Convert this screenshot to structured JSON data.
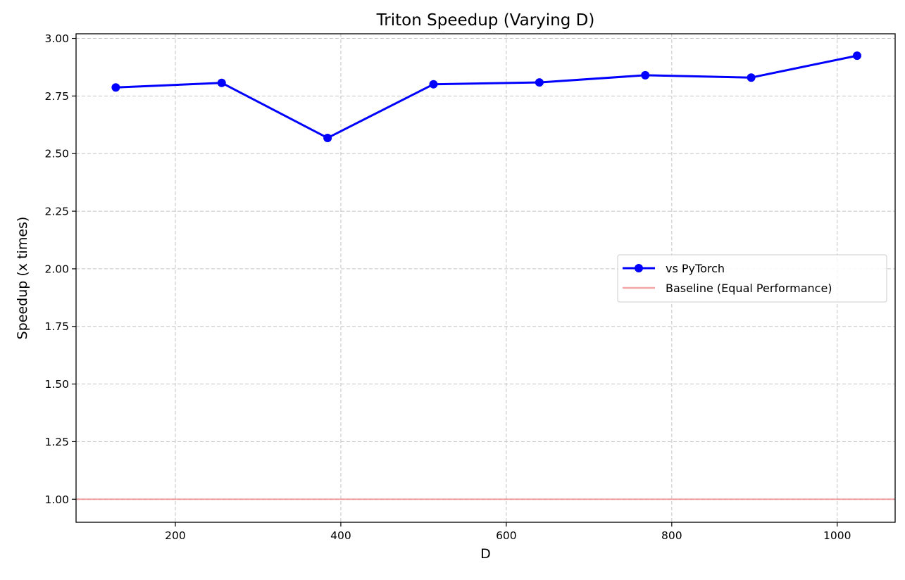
{
  "chart_data": {
    "type": "line",
    "title": "Triton Speedup (Varying D)",
    "xlabel": "D",
    "ylabel": "Speedup (x times)",
    "xlim": [
      80,
      1070
    ],
    "ylim": [
      0.9,
      3.02
    ],
    "xticks": [
      200,
      400,
      600,
      800,
      1000
    ],
    "xtick_labels": [
      "200",
      "400",
      "600",
      "800",
      "1000"
    ],
    "yticks": [
      1.0,
      1.25,
      1.5,
      1.75,
      2.0,
      2.25,
      2.5,
      2.75,
      3.0
    ],
    "ytick_labels": [
      "1.00",
      "1.25",
      "1.50",
      "1.75",
      "2.00",
      "2.25",
      "2.50",
      "2.75",
      "3.00"
    ],
    "grid": true,
    "legend_position": "center-right",
    "series": [
      {
        "name": "vs PyTorch",
        "color": "#0000ff",
        "marker": "circle",
        "x": [
          128,
          256,
          384,
          512,
          640,
          768,
          896,
          1024
        ],
        "y": [
          2.787,
          2.807,
          2.568,
          2.801,
          2.809,
          2.84,
          2.83,
          2.925
        ]
      },
      {
        "name": "Baseline (Equal Performance)",
        "color": "#f08080",
        "style": "horizontal-line",
        "y": 1.0
      }
    ]
  }
}
